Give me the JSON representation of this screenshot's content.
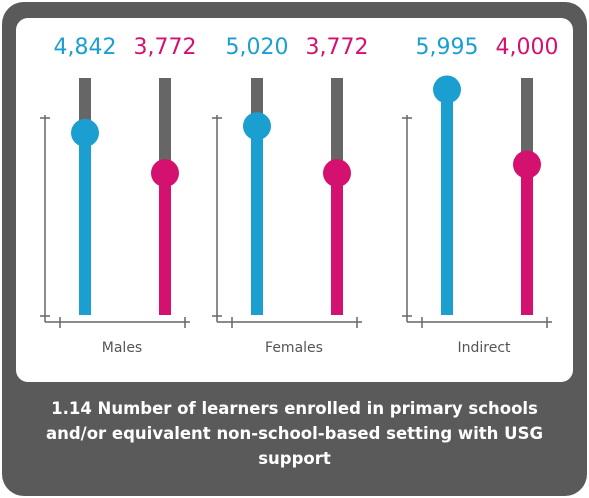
{
  "chart_data": {
    "type": "slider-bar",
    "title": "1.14 Number of learners enrolled in primary schools and/or equivalent non-school-based setting with USG support",
    "categories": [
      "Males",
      "Females",
      "Indirect"
    ],
    "series": [
      {
        "color": "#1a9fd0",
        "values": [
          4842,
          5020,
          5995
        ],
        "value_labels": [
          "4,842",
          "5,020",
          "5,995"
        ]
      },
      {
        "color": "#d4116f",
        "values": [
          3772,
          3772,
          4000
        ],
        "value_labels": [
          "3,772",
          "3,772",
          "4,000"
        ]
      }
    ],
    "ylim": [
      0,
      6300
    ]
  }
}
